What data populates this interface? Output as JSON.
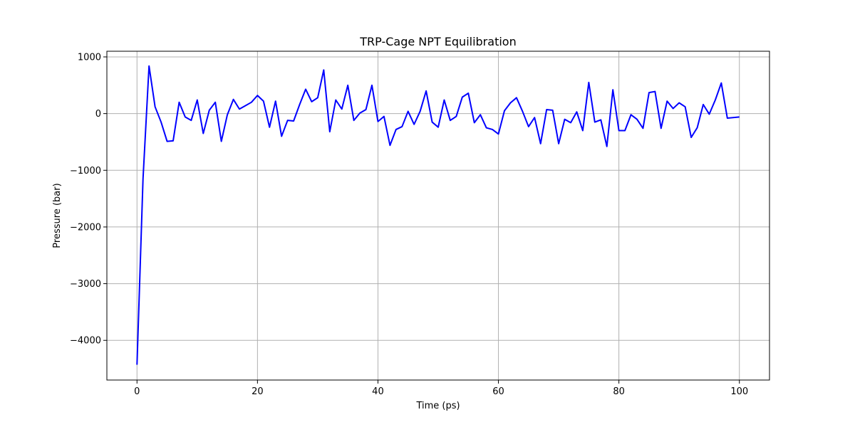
{
  "chart_data": {
    "type": "line",
    "title": "TRP-Cage NPT Equilibration",
    "xlabel": "Time (ps)",
    "ylabel": "Pressure (bar)",
    "xlim": [
      -5,
      105
    ],
    "ylim": [
      -4700,
      1100
    ],
    "xticks": [
      0,
      20,
      40,
      60,
      80,
      100
    ],
    "yticks": [
      1000,
      0,
      -1000,
      -2000,
      -3000,
      -4000
    ],
    "xtick_labels": [
      "0",
      "20",
      "40",
      "60",
      "80",
      "100"
    ],
    "ytick_labels": [
      "1000",
      "0",
      "−1000",
      "−2000",
      "−3000",
      "−4000"
    ],
    "grid": true,
    "legend": "none",
    "series": [
      {
        "color": "#0000ff",
        "x": [
          0,
          1,
          2,
          3,
          4,
          5,
          6,
          7,
          8,
          9,
          10,
          11,
          12,
          13,
          14,
          15,
          16,
          17,
          18,
          19,
          20,
          21,
          22,
          23,
          24,
          25,
          26,
          27,
          28,
          29,
          30,
          31,
          32,
          33,
          34,
          35,
          36,
          37,
          38,
          39,
          40,
          41,
          42,
          43,
          44,
          45,
          46,
          47,
          48,
          49,
          50,
          51,
          52,
          53,
          54,
          55,
          56,
          57,
          58,
          59,
          60,
          61,
          62,
          63,
          64,
          65,
          66,
          67,
          68,
          69,
          70,
          71,
          72,
          73,
          74,
          75,
          76,
          77,
          78,
          79,
          80,
          81,
          82,
          83,
          84,
          85,
          86,
          87,
          88,
          89,
          90,
          91,
          92,
          93,
          94,
          95,
          96,
          97,
          98,
          100
        ],
        "y": [
          -4430,
          -1150,
          840,
          120,
          -150,
          -490,
          -480,
          200,
          -60,
          -120,
          240,
          -350,
          60,
          200,
          -490,
          -20,
          250,
          80,
          140,
          200,
          320,
          220,
          -240,
          220,
          -400,
          -120,
          -130,
          160,
          430,
          210,
          280,
          770,
          -320,
          240,
          80,
          500,
          -120,
          10,
          70,
          500,
          -140,
          -50,
          -560,
          -280,
          -230,
          40,
          -190,
          40,
          400,
          -150,
          -240,
          240,
          -120,
          -50,
          290,
          360,
          -160,
          -20,
          -250,
          -280,
          -360,
          50,
          190,
          280,
          40,
          -230,
          -70,
          -530,
          70,
          60,
          -530,
          -100,
          -160,
          30,
          -300,
          550,
          -150,
          -110,
          -580,
          420,
          -300,
          -300,
          -20,
          -100,
          -260,
          370,
          390,
          -260,
          220,
          90,
          190,
          120,
          -420,
          -250,
          160,
          -10,
          240,
          540,
          -80,
          -60
        ]
      }
    ]
  }
}
